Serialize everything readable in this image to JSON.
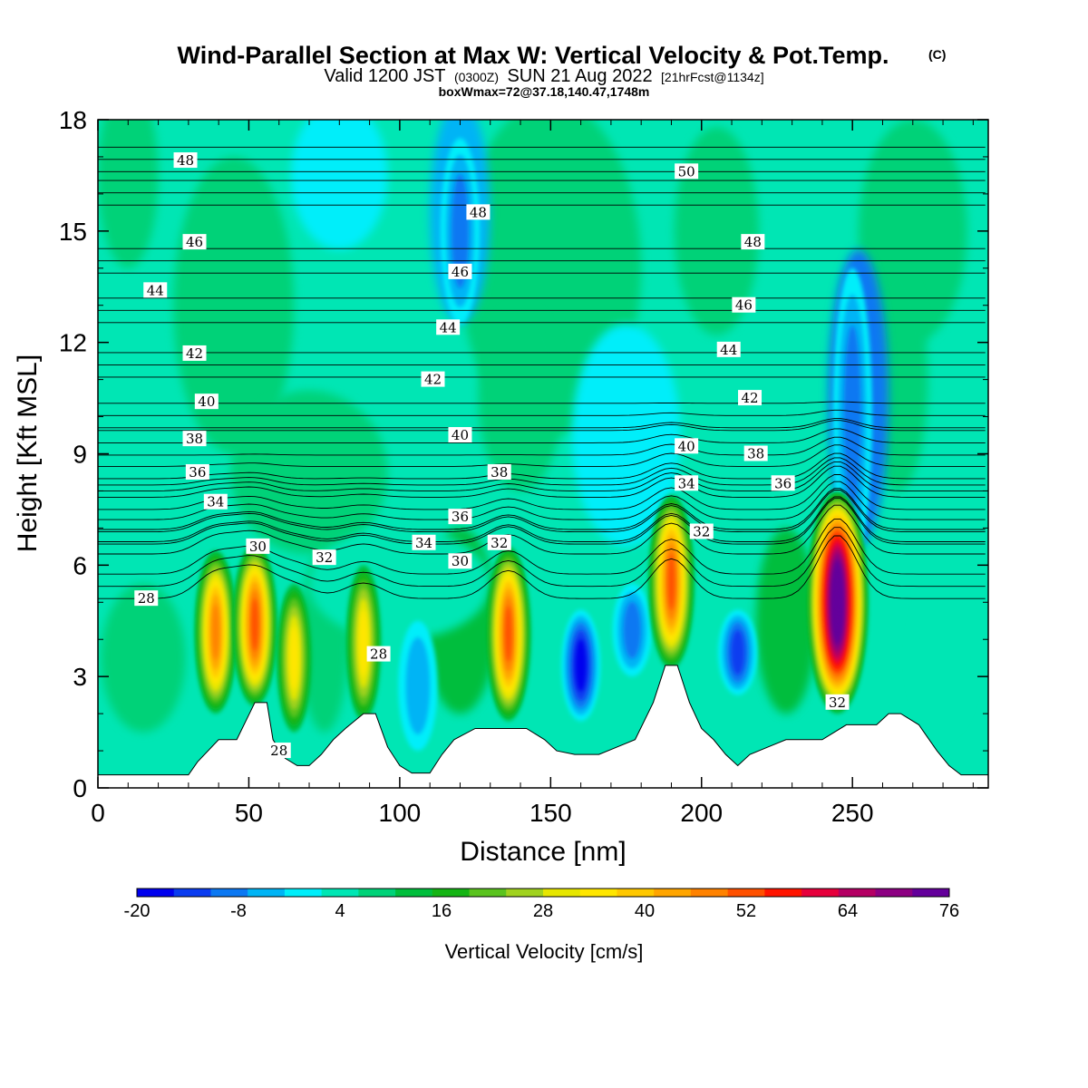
{
  "header": {
    "title_main": "Wind-Parallel Section at Max W: Vertical Velocity & Pot.Temp.",
    "title_mark": "(C)",
    "subtitle_valid": "Valid 1200 JST",
    "subtitle_utc": "(0300Z)",
    "subtitle_date": "SUN 21 Aug 2022",
    "subtitle_fcst": "[21hrFcst@1134z]",
    "box_info": "boxWmax=72@37.18,140.47,1748m"
  },
  "colors": {
    "levels": [
      "#0000ee",
      "#0a3cf0",
      "#0b78f2",
      "#00b4f5",
      "#00eefa",
      "#00e6b4",
      "#00d278",
      "#00be3c",
      "#14b414",
      "#5ac31e",
      "#a0d21e",
      "#e6e600",
      "#ffe600",
      "#ffc800",
      "#ffa500",
      "#ff8200",
      "#ff5000",
      "#ff1400",
      "#e6003c",
      "#b40064",
      "#8c0082",
      "#64009b"
    ],
    "terrain": "#ffffff",
    "contour": "#000000"
  },
  "chart_data": {
    "type": "heatmap",
    "title": "Wind-Parallel Section at Max W: Vertical Velocity & Pot.Temp.",
    "xlabel": "Distance [nm]",
    "ylabel": "Height [Kft MSL]",
    "xlim": [
      0,
      295
    ],
    "ylim": [
      0,
      18
    ],
    "x_ticks": [
      "0",
      "50",
      "100",
      "150",
      "200",
      "250"
    ],
    "y_ticks": [
      "0",
      "3",
      "6",
      "9",
      "12",
      "15",
      "18"
    ],
    "colorbar": {
      "label": "Vertical Velocity [cm/s]",
      "min": -20,
      "max": 76,
      "step": 4,
      "tick_labels": [
        "-20",
        "-8",
        "4",
        "16",
        "28",
        "40",
        "52",
        "64",
        "76"
      ]
    },
    "updraft_cores": [
      {
        "x": 39,
        "z_bottom": 2.0,
        "z_top": 6.4,
        "w_max": 40
      },
      {
        "x": 52,
        "z_bottom": 2.2,
        "z_top": 6.6,
        "w_max": 44
      },
      {
        "x": 65,
        "z_bottom": 1.5,
        "z_top": 5.5,
        "w_max": 28
      },
      {
        "x": 88,
        "z_bottom": 1.8,
        "z_top": 6.0,
        "w_max": 28
      },
      {
        "x": 136,
        "z_bottom": 1.8,
        "z_top": 6.5,
        "w_max": 44
      },
      {
        "x": 190,
        "z_bottom": 3.2,
        "z_top": 7.9,
        "w_max": 46
      },
      {
        "x": 245,
        "z_bottom": 2.0,
        "z_top": 8.0,
        "w_max": 72
      }
    ],
    "downdraft_cores": [
      {
        "x": 106,
        "z_bottom": 1.0,
        "z_top": 4.5,
        "w_min": -6
      },
      {
        "x": 160,
        "z_bottom": 1.8,
        "z_top": 4.8,
        "w_min": -18
      },
      {
        "x": 177,
        "z_bottom": 3.0,
        "z_top": 5.5,
        "w_min": -10
      },
      {
        "x": 212,
        "z_bottom": 2.5,
        "z_top": 4.8,
        "w_min": -16
      },
      {
        "x": 250,
        "z_bottom": 6.0,
        "z_top": 14.0,
        "w_min": -12
      },
      {
        "x": 120,
        "z_bottom": 12.5,
        "z_top": 17.5,
        "w_min": -10
      }
    ],
    "terrain_height": {
      "x": [
        0,
        30,
        33,
        40,
        46,
        52,
        56,
        58,
        62,
        66,
        70,
        74,
        78,
        82,
        85,
        88,
        92,
        96,
        100,
        104,
        110,
        114,
        118,
        125,
        130,
        136,
        142,
        148,
        152,
        158,
        166,
        172,
        178,
        184,
        188,
        192,
        196,
        200,
        204,
        208,
        212,
        216,
        222,
        228,
        234,
        240,
        248,
        252,
        258,
        262,
        266,
        272,
        278,
        282,
        286,
        295
      ],
      "z": [
        0.35,
        0.35,
        0.7,
        1.3,
        1.3,
        2.3,
        2.3,
        1.3,
        0.8,
        0.6,
        0.6,
        0.9,
        1.3,
        1.6,
        1.8,
        2.0,
        2.0,
        1.1,
        0.6,
        0.4,
        0.4,
        0.9,
        1.3,
        1.6,
        1.6,
        1.6,
        1.6,
        1.3,
        1.0,
        0.9,
        0.9,
        1.1,
        1.3,
        2.3,
        3.3,
        3.3,
        2.3,
        1.6,
        1.3,
        0.9,
        0.6,
        0.9,
        1.1,
        1.3,
        1.3,
        1.3,
        1.7,
        1.7,
        1.7,
        2.0,
        2.0,
        1.7,
        1.0,
        0.6,
        0.35,
        0.35
      ]
    },
    "theta_contours": [
      {
        "level": 28,
        "label_x": 16,
        "label_z": 5.1
      },
      {
        "level": 28,
        "label_x": 93,
        "label_z": 3.6
      },
      {
        "level": 28,
        "label_x": 60,
        "label_z": 1.0
      },
      {
        "level": 30,
        "label_x": 53,
        "label_z": 6.5
      },
      {
        "level": 30,
        "label_x": 120,
        "label_z": 6.1
      },
      {
        "level": 32,
        "label_x": 75,
        "label_z": 6.2
      },
      {
        "level": 32,
        "label_x": 133,
        "label_z": 6.6
      },
      {
        "level": 32,
        "label_x": 200,
        "label_z": 6.9
      },
      {
        "level": 32,
        "label_x": 245,
        "label_z": 2.3
      },
      {
        "level": 34,
        "label_x": 39,
        "label_z": 7.7
      },
      {
        "level": 34,
        "label_x": 108,
        "label_z": 6.6
      },
      {
        "level": 34,
        "label_x": 195,
        "label_z": 8.2
      },
      {
        "level": 36,
        "label_x": 33,
        "label_z": 8.5
      },
      {
        "level": 36,
        "label_x": 120,
        "label_z": 7.3
      },
      {
        "level": 36,
        "label_x": 227,
        "label_z": 8.2
      },
      {
        "level": 38,
        "label_x": 32,
        "label_z": 9.4
      },
      {
        "level": 38,
        "label_x": 133,
        "label_z": 8.5
      },
      {
        "level": 38,
        "label_x": 218,
        "label_z": 9.0
      },
      {
        "level": 40,
        "label_x": 36,
        "label_z": 10.4
      },
      {
        "level": 40,
        "label_x": 120,
        "label_z": 9.5
      },
      {
        "level": 40,
        "label_x": 195,
        "label_z": 9.2
      },
      {
        "level": 42,
        "label_x": 32,
        "label_z": 11.7
      },
      {
        "level": 42,
        "label_x": 111,
        "label_z": 11.0
      },
      {
        "level": 42,
        "label_x": 216,
        "label_z": 10.5
      },
      {
        "level": 44,
        "label_x": 19,
        "label_z": 13.4
      },
      {
        "level": 44,
        "label_x": 116,
        "label_z": 12.4
      },
      {
        "level": 44,
        "label_x": 209,
        "label_z": 11.8
      },
      {
        "level": 46,
        "label_x": 32,
        "label_z": 14.7
      },
      {
        "level": 46,
        "label_x": 120,
        "label_z": 13.9
      },
      {
        "level": 46,
        "label_x": 214,
        "label_z": 13.0
      },
      {
        "level": 48,
        "label_x": 29,
        "label_z": 16.9
      },
      {
        "level": 48,
        "label_x": 126,
        "label_z": 15.5
      },
      {
        "level": 48,
        "label_x": 217,
        "label_z": 14.7
      },
      {
        "level": 50,
        "label_x": 195,
        "label_z": 16.6
      }
    ]
  }
}
